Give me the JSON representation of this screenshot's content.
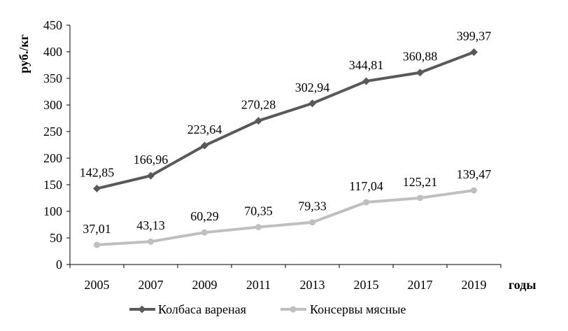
{
  "chart_data": {
    "type": "line",
    "categories": [
      "2005",
      "2007",
      "2009",
      "2011",
      "2013",
      "2015",
      "2017",
      "2019"
    ],
    "series": [
      {
        "name": "Колбаса вареная",
        "values": [
          142.85,
          166.96,
          223.64,
          270.28,
          302.94,
          344.81,
          360.88,
          399.37
        ],
        "labels": [
          "142,85",
          "166,96",
          "223,64",
          "270,28",
          "302,94",
          "344,81",
          "360,88",
          "399,37"
        ],
        "color": "#595959",
        "marker": "diamond"
      },
      {
        "name": "Консервы мясные",
        "values": [
          37.01,
          43.13,
          60.29,
          70.35,
          79.33,
          117.04,
          125.21,
          139.47
        ],
        "labels": [
          "37,01",
          "43,13",
          "60,29",
          "70,35",
          "79,33",
          "117,04",
          "125,21",
          "139,47"
        ],
        "color": "#bfbfbf",
        "marker": "circle"
      }
    ],
    "xlabel": "годы",
    "ylabel": "руб./кг",
    "ylim": [
      0,
      450
    ],
    "yticks": [
      0,
      50,
      100,
      150,
      200,
      250,
      300,
      350,
      400,
      450
    ],
    "grid": false,
    "legend": "bottom"
  }
}
